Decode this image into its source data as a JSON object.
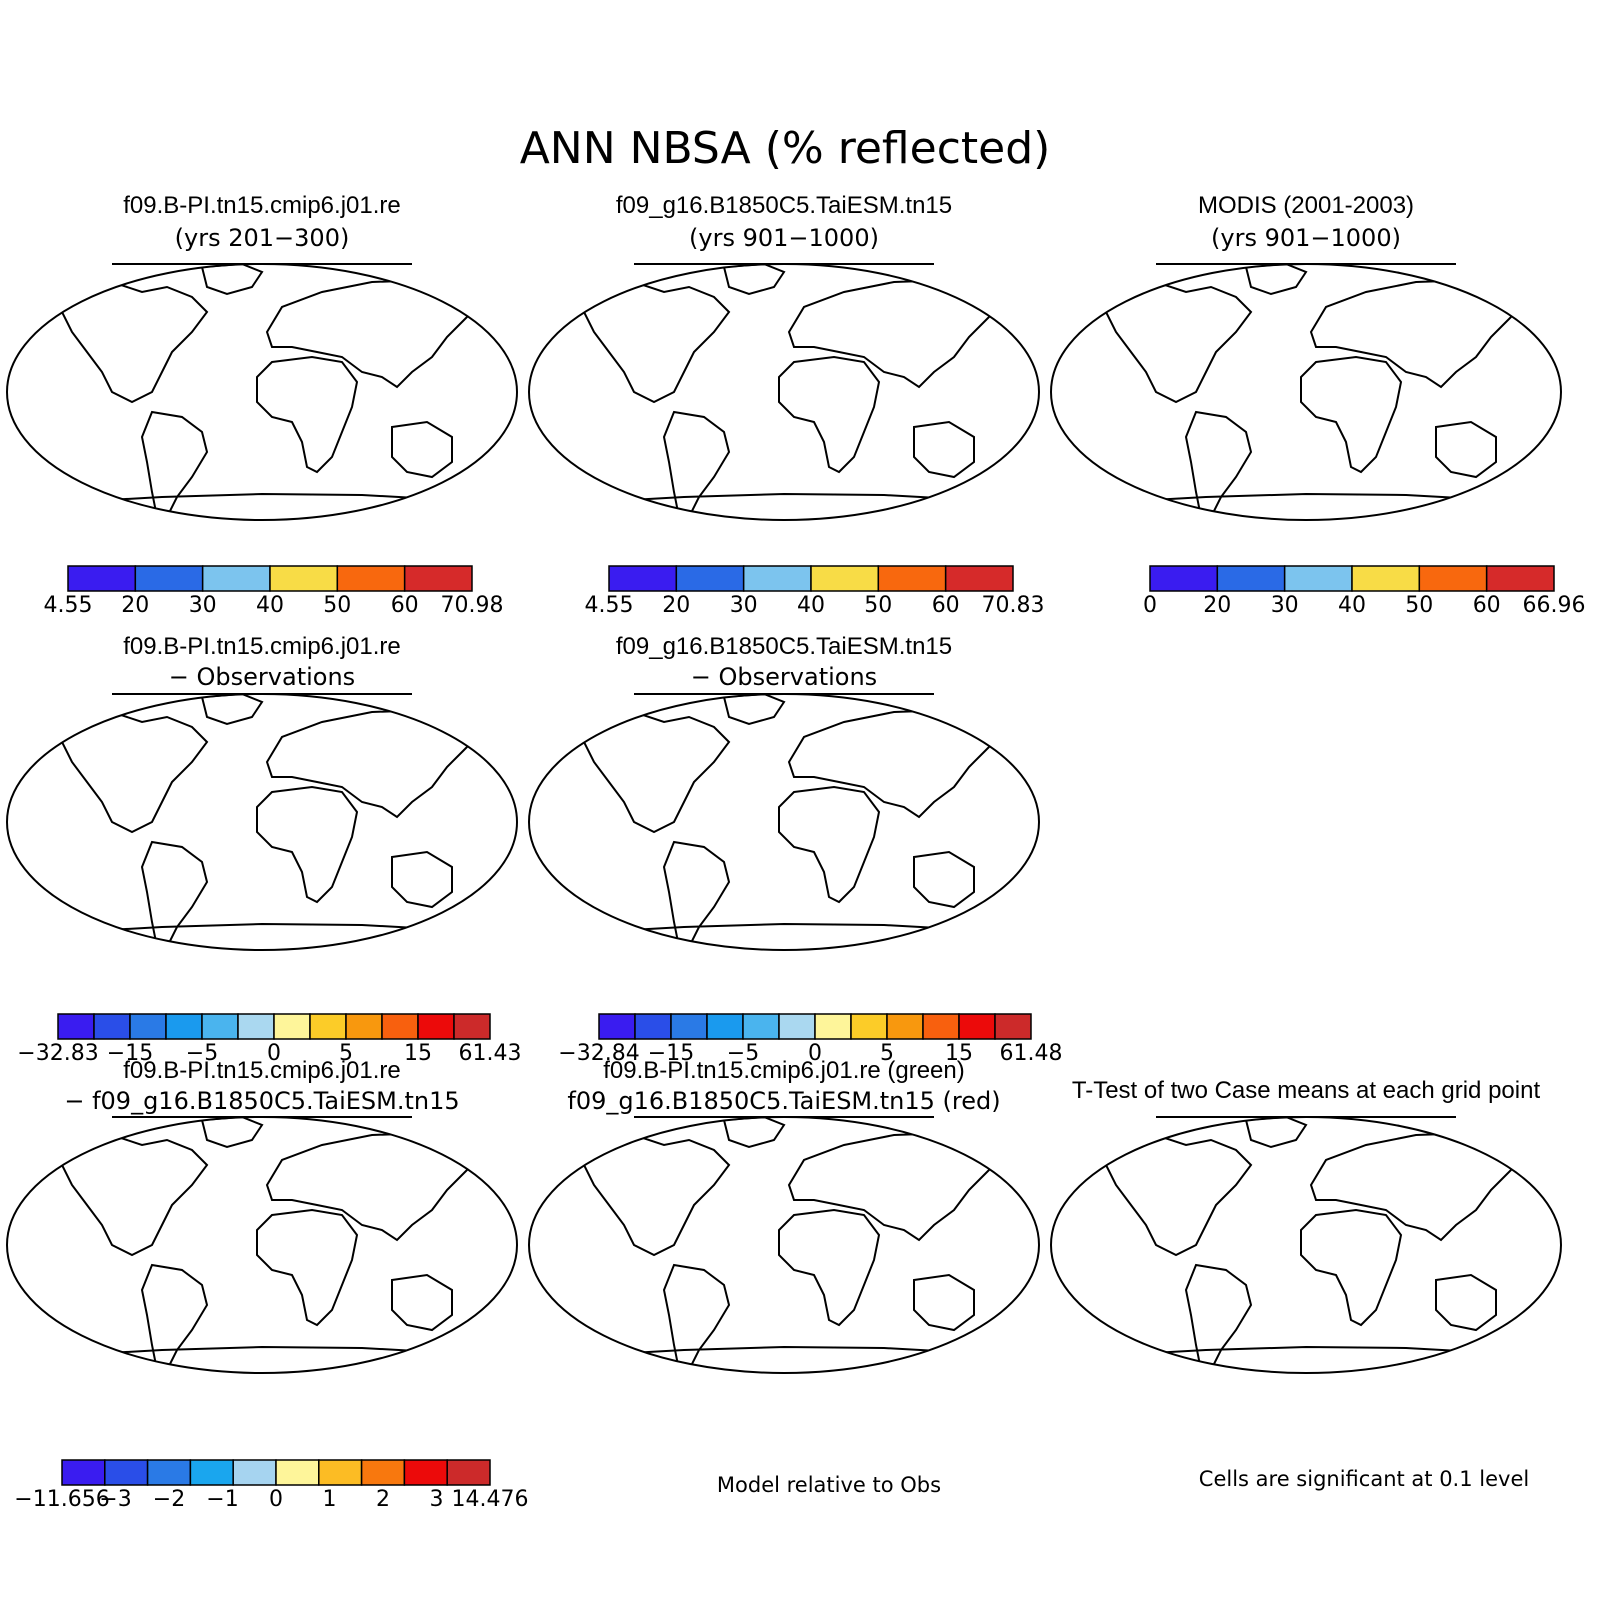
{
  "figure": {
    "title": "ANN NBSA (% reflected)"
  },
  "colors": {
    "land_scale": [
      "#3a1cf0",
      "#2a6ae6",
      "#7cc4ee",
      "#f8dc46",
      "#f8680e",
      "#d62a2a"
    ],
    "diff_scale": [
      "#3a1cf0",
      "#2a4ee8",
      "#2a7ae6",
      "#1a9aee",
      "#4ab4ee",
      "#aad8f0",
      "#fef59a",
      "#fccc28",
      "#f8980e",
      "#f8600e",
      "#ec0a0a",
      "#cc2a2a"
    ],
    "case_diff_scale": [
      "#3a1cf0",
      "#2a4ee8",
      "#2a7ae6",
      "#1aa6ee",
      "#a6d4f0",
      "#fef59a",
      "#fcbc24",
      "#f8780e",
      "#ec0a0a",
      "#cc2a2a"
    ],
    "green": "#00f000",
    "red": "#f00000",
    "ocean": "#ffffff",
    "coast": "#000000"
  },
  "panels": [
    {
      "line1": "f09.B-PI.tn15.cmip6.j01.re",
      "line2": "(yrs 201−300)"
    },
    {
      "line1": "f09_g16.B1850C5.TaiESM.tn15",
      "line2": "(yrs 901−1000)"
    },
    {
      "line1": "MODIS (2001-2003)",
      "line2": "(yrs 901−1000)"
    },
    {
      "line1": "f09.B-PI.tn15.cmip6.j01.re",
      "line2": "− Observations"
    },
    {
      "line1": "f09_g16.B1850C5.TaiESM.tn15",
      "line2": "− Observations"
    },
    {
      "line1": "f09.B-PI.tn15.cmip6.j01.re",
      "line2": "− f09_g16.B1850C5.TaiESM.tn15"
    },
    {
      "line1": "f09.B-PI.tn15.cmip6.j01.re (green)",
      "line2": "f09_g16.B1850C5.TaiESM.tn15 (red)"
    },
    {
      "line1": "T-Test of two Case means at each grid point",
      "line2": ""
    }
  ],
  "colorbars": [
    {
      "ticks": [
        "4.55",
        "20",
        "30",
        "40",
        "50",
        "60",
        "70.98"
      ]
    },
    {
      "ticks": [
        "4.55",
        "20",
        "30",
        "40",
        "50",
        "60",
        "70.83"
      ]
    },
    {
      "ticks": [
        "0",
        "20",
        "30",
        "40",
        "50",
        "60",
        "66.96"
      ]
    },
    {
      "ticks": [
        "−32.83",
        "−15",
        "−5",
        "0",
        "5",
        "15",
        "61.43"
      ]
    },
    {
      "ticks": [
        "−32.84",
        "−15",
        "−5",
        "0",
        "5",
        "15",
        "61.48"
      ]
    },
    {
      "ticks": [
        "−11.656",
        "−3",
        "−2",
        "−1",
        "0",
        "1",
        "2",
        "3",
        "14.476"
      ]
    }
  ],
  "notes": {
    "model_relative": "Model relative to Obs",
    "significance": "Cells are significant at 0.1 level"
  }
}
